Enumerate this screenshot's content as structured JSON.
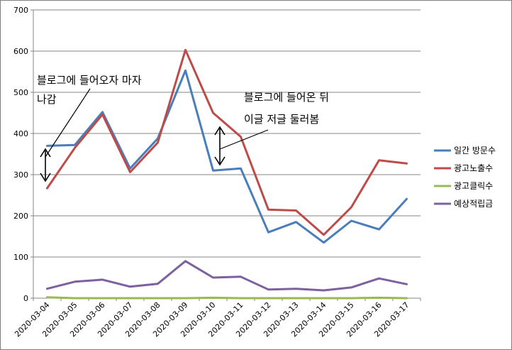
{
  "chart_data": {
    "type": "line",
    "x": [
      "2020-03-04",
      "2020-03-05",
      "2020-03-06",
      "2020-03-07",
      "2020-03-08",
      "2020-03-09",
      "2020-03-10",
      "2020-03-11",
      "2020-03-12",
      "2020-03-13",
      "2020-03-14",
      "2020-03-15",
      "2020-03-16",
      "2020-03-17"
    ],
    "ylim": [
      0,
      700
    ],
    "yticks": [
      "0",
      "100",
      "200",
      "300",
      "400",
      "500",
      "600",
      "700"
    ],
    "grid": "horizontal",
    "legend_position": "right",
    "series": [
      {
        "name": "일간 방문수",
        "color": "#4a7ebb",
        "values": [
          370,
          372,
          452,
          315,
          388,
          553,
          310,
          315,
          160,
          185,
          135,
          188,
          167,
          241
        ]
      },
      {
        "name": "광고노출수",
        "color": "#be4b48",
        "values": [
          267,
          365,
          446,
          306,
          378,
          603,
          450,
          392,
          215,
          213,
          154,
          221,
          335,
          327
        ]
      },
      {
        "name": "광고클릭수",
        "color": "#98b954",
        "values": [
          2,
          0,
          0,
          0,
          0,
          0,
          1,
          0,
          0,
          0,
          0,
          0,
          1,
          0
        ]
      },
      {
        "name": "예상적립금",
        "color": "#7d60a0",
        "values": [
          23,
          40,
          45,
          28,
          35,
          90,
          50,
          52,
          21,
          23,
          19,
          26,
          48,
          34
        ]
      }
    ],
    "annotations": [
      {
        "lines": [
          "블로그에 들어오자 마자",
          "나감"
        ]
      },
      {
        "lines": [
          "블로그에 들어온 뒤",
          "이글 저글 둘러봄"
        ]
      }
    ]
  }
}
